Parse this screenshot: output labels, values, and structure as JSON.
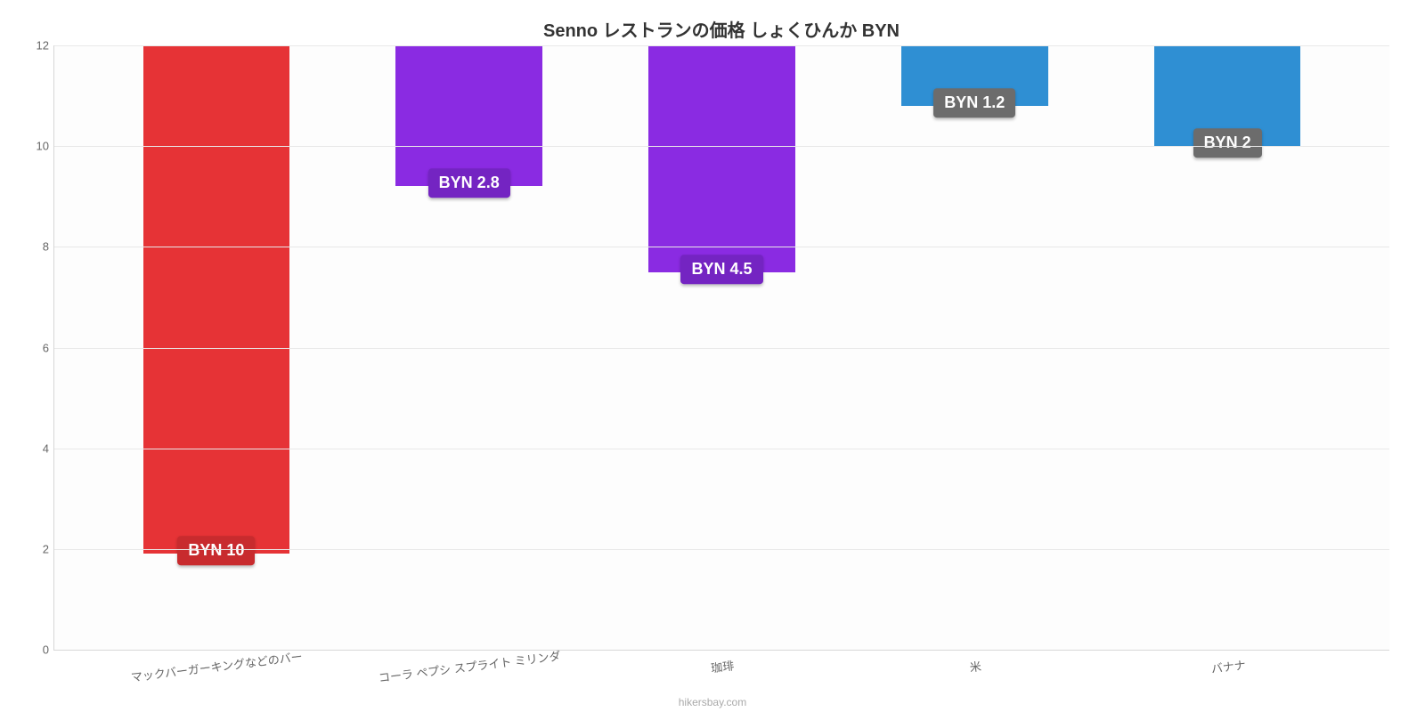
{
  "chart": {
    "type": "bar",
    "title": "Senno レストランの価格 しょくひんか BYN",
    "title_fontsize": 20,
    "title_color": "#333333",
    "background_color": "#fdfdfd",
    "grid_color": "#e8e8e8",
    "axis_color": "#cccccc",
    "ylim": [
      0,
      12
    ],
    "ytick_step": 2,
    "yticks": [
      0,
      2,
      4,
      6,
      8,
      10,
      12
    ],
    "label_fontsize": 13,
    "label_color": "#666666",
    "value_label_fontsize": 18,
    "value_label_text_color": "#ffffff",
    "bar_width_pct": 58,
    "attribution": "hikersbay.com",
    "categories": [
      "マックバーガーキングなどのバー",
      "コーラ ペプシ スプライト ミリンダ",
      "珈琲",
      "米",
      "バナナ"
    ],
    "values": [
      10.1,
      2.8,
      4.5,
      1.2,
      2.0
    ],
    "value_labels": [
      "BYN 10",
      "BYN 2.8",
      "BYN 4.5",
      "BYN 1.2",
      "BYN 2"
    ],
    "bar_colors": [
      "#e63336",
      "#8a2be2",
      "#8a2be2",
      "#2f8fd3",
      "#2f8fd3"
    ],
    "label_bg_colors": [
      "#c82b2e",
      "#7424c2",
      "#7424c2",
      "#6c6c6c",
      "#6c6c6c"
    ]
  }
}
